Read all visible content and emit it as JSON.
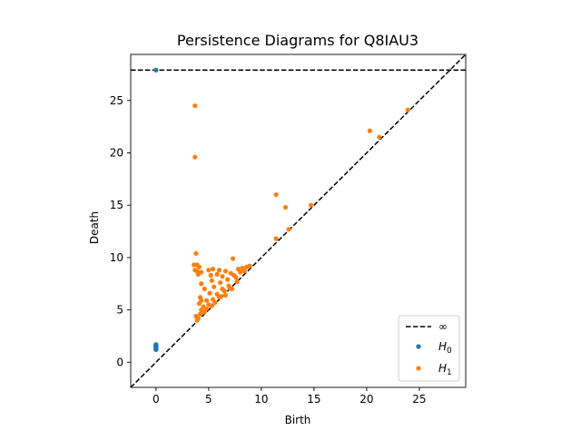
{
  "chart_data": {
    "type": "scatter",
    "title": "Persistence Diagrams for Q8IAU3",
    "xlabel": "Birth",
    "ylabel": "Death",
    "xlim": [
      -2.4,
      29.4
    ],
    "ylim": [
      -2.4,
      29.4
    ],
    "xticks": [
      0,
      5,
      10,
      15,
      20,
      25
    ],
    "yticks": [
      0,
      5,
      10,
      15,
      20,
      25
    ],
    "grid": false,
    "legend_position": "lower-right",
    "infinity_death": 27.9,
    "infinity_label": "∞",
    "series": [
      {
        "name": "H0",
        "name_base": "H",
        "name_sub": "0",
        "color": "#1f77b4",
        "points": [
          [
            0,
            27.9
          ],
          [
            0,
            1.2
          ],
          [
            0,
            1.25
          ],
          [
            0,
            1.3
          ],
          [
            0,
            1.35
          ],
          [
            0,
            1.4
          ],
          [
            0,
            1.45
          ],
          [
            0,
            1.5
          ],
          [
            0,
            1.55
          ],
          [
            0,
            1.6
          ],
          [
            0,
            1.65
          ],
          [
            0,
            1.7
          ]
        ]
      },
      {
        "name": "H1",
        "name_base": "H",
        "name_sub": "1",
        "color": "#ff7f0e",
        "points": [
          [
            3.7,
            24.5
          ],
          [
            3.7,
            19.6
          ],
          [
            11.4,
            16.0
          ],
          [
            12.3,
            14.8
          ],
          [
            14.7,
            15.0
          ],
          [
            11.4,
            11.8
          ],
          [
            12.6,
            12.7
          ],
          [
            20.3,
            22.1
          ],
          [
            21.2,
            21.5
          ],
          [
            23.9,
            24.1
          ],
          [
            3.8,
            10.4
          ],
          [
            7.3,
            9.9
          ],
          [
            3.6,
            9.3
          ],
          [
            3.9,
            9.3
          ],
          [
            4.1,
            9.1
          ],
          [
            3.9,
            8.7
          ],
          [
            4.0,
            8.4
          ],
          [
            4.3,
            8.6
          ],
          [
            3.7,
            8.8
          ],
          [
            5.0,
            8.8
          ],
          [
            5.4,
            8.9
          ],
          [
            6.0,
            8.8
          ],
          [
            6.6,
            8.7
          ],
          [
            7.1,
            8.5
          ],
          [
            7.8,
            8.9
          ],
          [
            8.2,
            9.0
          ],
          [
            8.6,
            9.1
          ],
          [
            8.9,
            9.2
          ],
          [
            5.2,
            8.3
          ],
          [
            5.8,
            8.4
          ],
          [
            6.3,
            8.2
          ],
          [
            7.4,
            8.3
          ],
          [
            8.0,
            8.6
          ],
          [
            4.3,
            7.5
          ],
          [
            5.3,
            7.8
          ],
          [
            6.1,
            7.6
          ],
          [
            6.8,
            7.9
          ],
          [
            7.6,
            8.1
          ],
          [
            8.4,
            8.7
          ],
          [
            4.6,
            7.0
          ],
          [
            5.5,
            7.2
          ],
          [
            6.3,
            7.0
          ],
          [
            6.9,
            7.3
          ],
          [
            7.7,
            7.7
          ],
          [
            4.2,
            6.2
          ],
          [
            5.1,
            6.6
          ],
          [
            5.8,
            6.5
          ],
          [
            6.5,
            6.8
          ],
          [
            7.2,
            7.0
          ],
          [
            4.3,
            5.9
          ],
          [
            4.8,
            5.9
          ],
          [
            5.4,
            6.0
          ],
          [
            6.0,
            6.2
          ],
          [
            6.6,
            6.4
          ],
          [
            4.1,
            5.6
          ],
          [
            4.5,
            5.3
          ],
          [
            5.0,
            5.5
          ],
          [
            5.6,
            5.7
          ],
          [
            4.3,
            5.0
          ],
          [
            4.8,
            5.1
          ],
          [
            3.8,
            4.4
          ],
          [
            4.2,
            4.6
          ],
          [
            4.0,
            4.2
          ],
          [
            4.6,
            4.8
          ],
          [
            3.9,
            4.0
          ],
          [
            5.3,
            5.4
          ],
          [
            6.2,
            6.3
          ],
          [
            7.0,
            7.1
          ]
        ]
      }
    ]
  }
}
